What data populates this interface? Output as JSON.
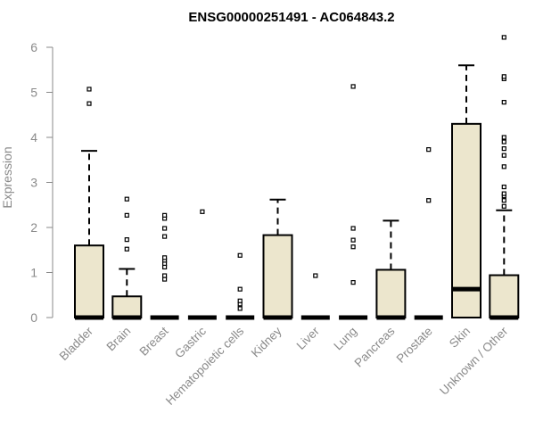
{
  "chart_data": {
    "type": "box",
    "title": "ENSG00000251491 - AC064843.2",
    "xlabel": "",
    "ylabel": "Expression",
    "ylim": [
      0,
      6.4
    ],
    "yticks": [
      "0",
      "1",
      "2",
      "3",
      "4",
      "5",
      "6"
    ],
    "box_fill": "#ece6cd",
    "line_color": "#000000",
    "grid": false,
    "legend": "none",
    "categories": [
      "Bladder",
      "Brain",
      "Breast",
      "Gastric",
      "Hematopoietic cells",
      "Kidney",
      "Liver",
      "Lung",
      "Pancreas",
      "Prostate",
      "Skin",
      "Unknown / Other"
    ],
    "boxes": [
      {
        "q1": 0,
        "median": 0,
        "q3": 1.6,
        "whisker_low": 0,
        "whisker_high": 3.7,
        "outliers": [
          4.75,
          5.07
        ]
      },
      {
        "q1": 0,
        "median": 0,
        "q3": 0.47,
        "whisker_low": 0,
        "whisker_high": 1.08,
        "outliers": [
          1.52,
          1.73,
          2.27,
          2.63
        ]
      },
      {
        "q1": 0,
        "median": 0,
        "q3": 0,
        "whisker_low": 0,
        "whisker_high": 0,
        "outliers": [
          0.85,
          0.93,
          1.12,
          1.2,
          1.27,
          1.33,
          1.8,
          1.98,
          2.2,
          2.27
        ]
      },
      {
        "q1": 0,
        "median": 0,
        "q3": 0,
        "whisker_low": 0,
        "whisker_high": 0,
        "outliers": [
          2.35
        ]
      },
      {
        "q1": 0,
        "median": 0,
        "q3": 0,
        "whisker_low": 0,
        "whisker_high": 0,
        "outliers": [
          0.2,
          0.3,
          0.37,
          0.63,
          1.38
        ]
      },
      {
        "q1": 0,
        "median": 0,
        "q3": 1.83,
        "whisker_low": 0,
        "whisker_high": 2.62,
        "outliers": []
      },
      {
        "q1": 0,
        "median": 0,
        "q3": 0,
        "whisker_low": 0,
        "whisker_high": 0,
        "outliers": [
          0.93
        ]
      },
      {
        "q1": 0,
        "median": 0,
        "q3": 0,
        "whisker_low": 0,
        "whisker_high": 0,
        "outliers": [
          0.78,
          1.57,
          1.72,
          1.98,
          5.13
        ]
      },
      {
        "q1": 0,
        "median": 0,
        "q3": 1.06,
        "whisker_low": 0,
        "whisker_high": 2.15,
        "outliers": []
      },
      {
        "q1": 0,
        "median": 0,
        "q3": 0,
        "whisker_low": 0,
        "whisker_high": 0,
        "outliers": [
          2.6,
          3.73
        ]
      },
      {
        "q1": 0,
        "median": 0.63,
        "q3": 4.3,
        "whisker_low": 0,
        "whisker_high": 5.6,
        "outliers": []
      },
      {
        "q1": 0,
        "median": 0,
        "q3": 0.94,
        "whisker_low": 0,
        "whisker_high": 2.38,
        "outliers": [
          2.47,
          2.6,
          2.7,
          2.75,
          2.9,
          3.35,
          3.6,
          3.75,
          3.9,
          4.0,
          4.78,
          5.3,
          5.35,
          6.22
        ]
      }
    ]
  }
}
